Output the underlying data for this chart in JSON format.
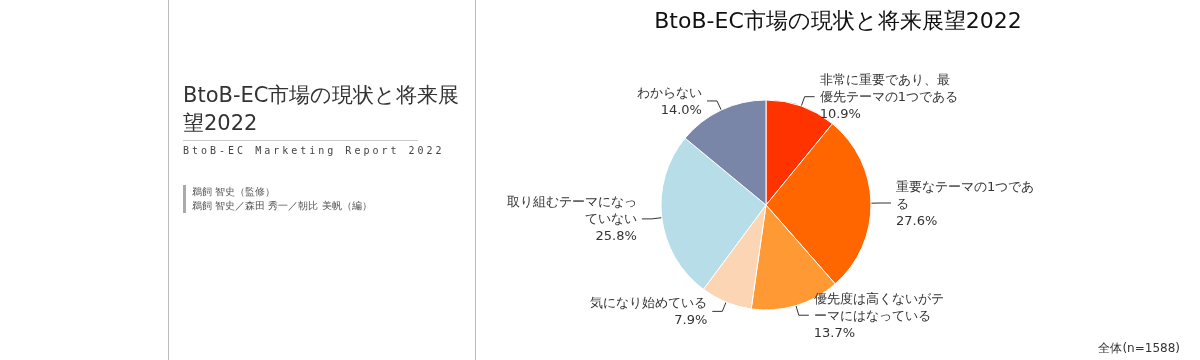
{
  "chart_data": [
    {
      "type": "other",
      "title": "BtoB-EC市場の現状と将来展望2022",
      "subtitle": "BtoB-EC Marketing Report 2022",
      "annotations": [
        "鵜飼 智史（監修）",
        "鵜飼 智史／森田 秀一／朝比 美帆（編）"
      ]
    },
    {
      "type": "pie",
      "title": "BtoB-EC市場の現状と将来展望2022",
      "categories": [
        "非常に重要であり、最優先テーマの1つである",
        "重要なテーマの1つである",
        "優先度は高くないがテーマにはなっている",
        "気になり始めている",
        "取り組むテーマになっていない",
        "わからない"
      ],
      "values": [
        10.9,
        27.6,
        13.7,
        7.9,
        25.8,
        14.0
      ],
      "value_labels": [
        "10.9%",
        "27.6%",
        "13.7%",
        "7.9%",
        "25.8%",
        "14.0%"
      ],
      "colors": [
        "#ff3300",
        "#ff6600",
        "#ff9933",
        "#fcd5b4",
        "#b7dde8",
        "#7a86a8"
      ],
      "annotations": [
        "全体(n=1588)"
      ]
    }
  ]
}
